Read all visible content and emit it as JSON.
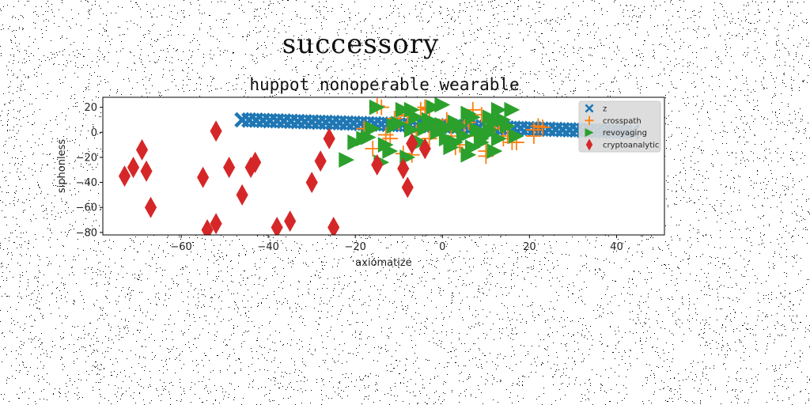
{
  "figure": {
    "suptitle": "successory"
  },
  "chart_data": {
    "type": "scatter",
    "title": "huppot nonoperable wearable",
    "xlabel": "axiomatize",
    "ylabel": "siphonless",
    "xlim": [
      -78,
      51
    ],
    "ylim": [
      -82,
      28
    ],
    "xticks": [
      -60,
      -40,
      -20,
      0,
      20,
      40
    ],
    "yticks": [
      20,
      0,
      -20,
      -40,
      -60,
      -80
    ],
    "grid": false,
    "legend": "top-right",
    "series": [
      {
        "name": "z",
        "marker": "x-filled",
        "color": "#1f77b4",
        "x": [
          -46,
          -44.4,
          -42.8,
          -41.2,
          -39.6,
          -38,
          -36.4,
          -34.8,
          -33.2,
          -31.6,
          -30,
          -28.4,
          -26.8,
          -25.2,
          -23.6,
          -22,
          -20.4,
          -18.8,
          -17.2,
          -15.6,
          -14,
          -12.4,
          -10.8,
          -9.2,
          -7.6,
          -6,
          -4.4,
          -2.8,
          -1.2,
          0.4,
          2,
          3.6,
          5.2,
          6.8,
          8.4,
          10,
          11.6,
          13.2,
          14.8,
          16.4,
          18,
          19.6,
          21.2,
          22.8,
          24.4,
          26,
          27.6,
          29.2,
          30.8,
          32.4,
          34,
          35.6,
          37.2,
          38.8,
          40.4,
          42,
          43.6
        ],
        "y": [
          10,
          9.8,
          9.7,
          9.5,
          9.3,
          9.2,
          9,
          8.8,
          8.6,
          8.5,
          8.3,
          8.1,
          8,
          7.8,
          7.6,
          7.4,
          7.3,
          7.1,
          6.9,
          6.8,
          6.6,
          6.4,
          6.2,
          6.1,
          5.9,
          5.7,
          5.6,
          5.4,
          5.2,
          5,
          4.9,
          4.7,
          4.5,
          4.4,
          4.2,
          4,
          3.8,
          3.7,
          3.5,
          3.3,
          3.2,
          3,
          2.8,
          2.6,
          2.5,
          2.3,
          2.1,
          2,
          1.8,
          1.6,
          1.4,
          1.3,
          1.1,
          0.9,
          0.8,
          0.6,
          0.4
        ]
      },
      {
        "name": "crosspath",
        "marker": "plus",
        "color": "#ff7f0e",
        "x": [
          -15,
          -14,
          -18,
          -12,
          -10,
          -8,
          -5,
          -4,
          -3,
          -1,
          1,
          3,
          5,
          7,
          9,
          11,
          13,
          15,
          17,
          21,
          22,
          23,
          -16,
          -13,
          -9,
          -6,
          -2,
          2,
          4,
          6,
          10,
          14,
          16,
          8,
          -11,
          -7,
          0,
          12,
          -3,
          -8,
          10,
          21
        ],
        "y": [
          21,
          20,
          3,
          -5,
          8,
          14,
          18,
          20,
          -5,
          3,
          10,
          -12,
          5,
          18,
          14,
          3,
          8,
          -3,
          -8,
          2,
          5,
          4,
          -13,
          -2,
          -17,
          0,
          5,
          -3,
          -10,
          8,
          -19,
          -5,
          -8,
          -3,
          11,
          -18,
          3,
          5,
          19,
          13,
          -15,
          -3
        ]
      },
      {
        "name": "revoyaging",
        "marker": "triangle-right",
        "color": "#2ca02c",
        "x": [
          -22,
          -18,
          -15,
          -13,
          -11,
          -9,
          -7,
          -5,
          -3,
          -1,
          0,
          1,
          3,
          5,
          7,
          9,
          11,
          13,
          15,
          17,
          -20,
          -16,
          -12,
          -8,
          -4,
          -2,
          2,
          4,
          6,
          8,
          10,
          12,
          14,
          -14,
          -6,
          0,
          3,
          9,
          13,
          -10,
          -2,
          6,
          11,
          -17,
          -7,
          1,
          7,
          12,
          16
        ],
        "y": [
          -22,
          -5,
          20,
          -10,
          5,
          18,
          2,
          -8,
          10,
          0,
          22,
          -5,
          8,
          -3,
          12,
          -8,
          2,
          18,
          5,
          -3,
          -8,
          3,
          -15,
          -20,
          3,
          8,
          -12,
          5,
          15,
          2,
          -2,
          8,
          10,
          -24,
          12,
          6,
          -8,
          -5,
          -5,
          7,
          20,
          -18,
          12,
          -4,
          18,
          3,
          -12,
          -15,
          18
        ]
      },
      {
        "name": "cryptoanalytic",
        "marker": "diamond",
        "color": "#d62728",
        "x": [
          -73,
          -71,
          -69,
          -68,
          -67,
          -55,
          -54,
          -52,
          -52,
          -49,
          -46,
          -44,
          -43,
          -38,
          -35,
          -30,
          -28,
          -26,
          -25,
          -15,
          -9,
          -8,
          -7,
          -4
        ],
        "y": [
          -35,
          -28,
          -14,
          -31,
          -60,
          -36,
          -78,
          -73,
          1,
          -28,
          -50,
          -28,
          -24,
          -76,
          -71,
          -40,
          -23,
          -5,
          -76,
          -26,
          -29,
          -44,
          -9,
          -13
        ]
      }
    ]
  }
}
